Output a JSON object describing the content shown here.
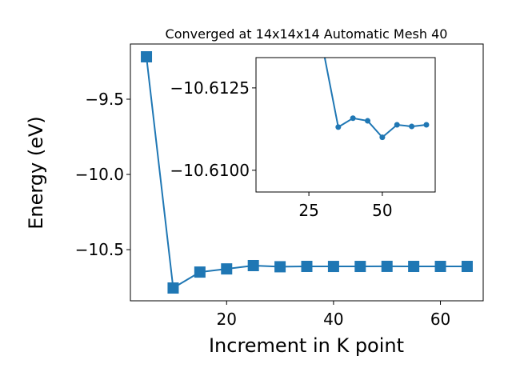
{
  "chart_data": [
    {
      "type": "line",
      "title": "Converged at 14x14x14 Automatic Mesh 40",
      "x_label": "Increment in K point",
      "y_label": "Energy (eV)",
      "x": [
        5,
        10,
        15,
        20,
        25,
        30,
        35,
        40,
        45,
        50,
        55,
        60,
        65
      ],
      "series": [
        {
          "color": "#1f77b4",
          "marker": "square",
          "values": [
            -9.218,
            -10.755,
            -10.649,
            -10.628,
            -10.606,
            -10.6136,
            -10.6113,
            -10.6116,
            -10.6115,
            -10.611,
            -10.6114,
            -10.6113,
            -10.6114
          ]
        }
      ],
      "xlim": [
        2,
        68
      ],
      "ylim": [
        -10.84,
        -9.133
      ],
      "xticks": [
        20,
        40,
        60
      ],
      "yticks": [
        {
          "value": -9.5,
          "label": "−9.5"
        },
        {
          "value": -10,
          "label": "−10.0"
        },
        {
          "value": -10.5,
          "label": "−10.5"
        }
      ]
    },
    {
      "type": "line",
      "x": [
        30,
        35,
        40,
        45,
        50,
        55,
        60,
        65
      ],
      "series": [
        {
          "color": "#1f77b4",
          "marker": "circle",
          "values": [
            -10.6136,
            -10.61131,
            -10.61158,
            -10.6115,
            -10.611,
            -10.61138,
            -10.61133,
            -10.61138
          ]
        }
      ],
      "xlim": [
        7,
        68
      ],
      "ylim": [
        -10.60934,
        -10.61342
      ],
      "xticks": [
        25,
        50
      ],
      "yticks": [
        {
          "value": -10.6125,
          "label": "−10.6125"
        },
        {
          "value": -10.61,
          "label": "−10.6100"
        }
      ]
    }
  ]
}
